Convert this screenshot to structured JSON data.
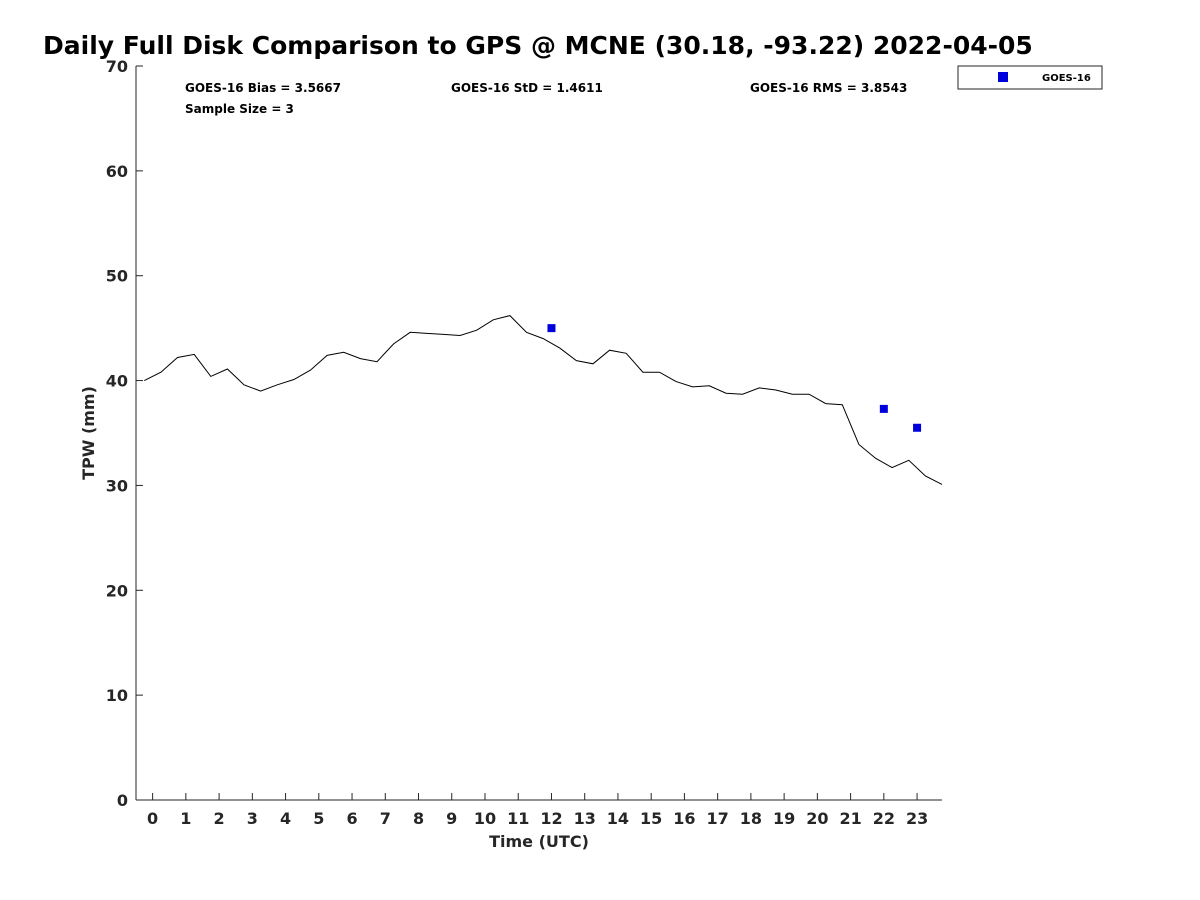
{
  "chart_data": {
    "type": "line",
    "title": "Daily Full Disk Comparison to GPS @ MCNE (30.18, -93.22) 2022-04-05",
    "xlabel": "Time (UTC)",
    "ylabel": "TPW (mm)",
    "xlim": [
      -0.5,
      23.75
    ],
    "ylim": [
      0,
      70
    ],
    "xticks": [
      "0",
      "1",
      "2",
      "3",
      "4",
      "5",
      "6",
      "7",
      "8",
      "9",
      "10",
      "11",
      "12",
      "13",
      "14",
      "15",
      "16",
      "17",
      "18",
      "19",
      "20",
      "21",
      "22",
      "23"
    ],
    "yticks": [
      "0",
      "10",
      "20",
      "30",
      "40",
      "50",
      "60",
      "70"
    ],
    "grid": false,
    "legend_position": "outside top-right",
    "stats": {
      "bias": "GOES-16 Bias = 3.5667",
      "std": "GOES-16 StD = 1.4611",
      "rms": "GOES-16 RMS = 3.8543",
      "sample": "Sample Size = 3"
    },
    "series": [
      {
        "line_color": "#000000",
        "x": [
          -0.25,
          0.25,
          0.75,
          1.25,
          1.75,
          2.25,
          2.75,
          3.25,
          3.75,
          4.25,
          4.75,
          5.25,
          5.75,
          6.25,
          6.75,
          7.25,
          7.75,
          8.25,
          8.75,
          9.25,
          9.75,
          10.25,
          10.75,
          11.25,
          11.75,
          12.25,
          12.75,
          13.25,
          13.75,
          14.25,
          14.75,
          15.25,
          15.75,
          16.25,
          16.75,
          17.25,
          17.75,
          18.25,
          18.75,
          19.25,
          19.75,
          20.25,
          20.75,
          21.25,
          21.75,
          22.25,
          22.75,
          23.25,
          23.75
        ],
        "y": [
          40.0,
          40.8,
          42.2,
          42.5,
          40.4,
          41.1,
          39.6,
          39.0,
          39.6,
          40.1,
          41.0,
          42.4,
          42.7,
          42.1,
          41.8,
          43.5,
          44.6,
          44.5,
          44.4,
          44.3,
          44.8,
          45.8,
          46.2,
          44.6,
          44.0,
          43.1,
          41.9,
          41.6,
          42.9,
          42.6,
          40.8,
          40.8,
          39.9,
          39.4,
          39.5,
          38.8,
          38.7,
          39.3,
          39.1,
          38.7,
          38.7,
          37.8,
          37.7,
          33.9,
          32.6,
          31.7,
          32.4,
          30.9,
          30.1
        ]
      },
      {
        "name": "GOES-16",
        "color": "#0000dd",
        "marker": "square",
        "x": [
          12,
          22,
          23
        ],
        "y": [
          45.0,
          37.3,
          35.5
        ]
      }
    ]
  }
}
